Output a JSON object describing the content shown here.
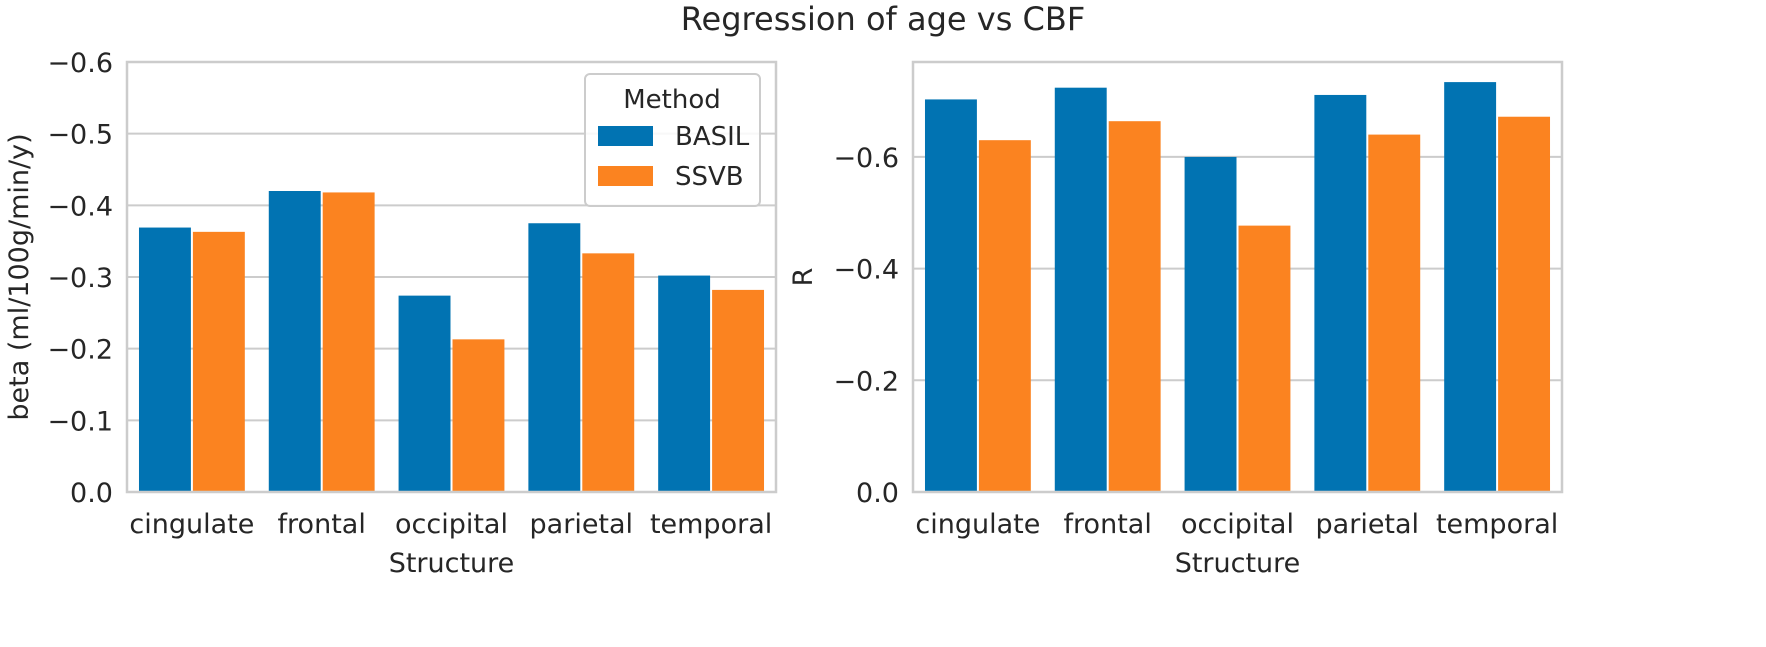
{
  "figure_title": "Regression of age vs CBF",
  "colors": {
    "basil": "#0173b2",
    "ssvb": "#fb8320",
    "grid": "#cccccc",
    "frame": "#cccccc",
    "text": "#262626"
  },
  "chart_data": [
    {
      "type": "bar",
      "categories": [
        "cingulate",
        "frontal",
        "occipital",
        "parietal",
        "temporal"
      ],
      "series": [
        {
          "name": "BASIL",
          "values": [
            -0.369,
            -0.42,
            -0.274,
            -0.375,
            -0.302
          ]
        },
        {
          "name": "SSVB",
          "values": [
            -0.363,
            -0.418,
            -0.213,
            -0.333,
            -0.282
          ]
        }
      ],
      "xlabel": "Structure",
      "ylabel": "beta (ml/100g/min/y)",
      "ylim": [
        0.0,
        -0.6
      ],
      "yticks": [
        "0.0",
        "−0.1",
        "−0.2",
        "−0.3",
        "−0.4",
        "−0.5",
        "−0.6"
      ],
      "ytick_values": [
        0.0,
        -0.1,
        -0.2,
        -0.3,
        -0.4,
        -0.5,
        -0.6
      ],
      "legend": {
        "title": "Method",
        "entries": [
          "BASIL",
          "SSVB"
        ],
        "placement": "top-right"
      },
      "grid": true
    },
    {
      "type": "bar",
      "categories": [
        "cingulate",
        "frontal",
        "occipital",
        "parietal",
        "temporal"
      ],
      "series": [
        {
          "name": "BASIL",
          "values": [
            -0.703,
            -0.724,
            -0.6,
            -0.711,
            -0.734
          ]
        },
        {
          "name": "SSVB",
          "values": [
            -0.63,
            -0.664,
            -0.477,
            -0.64,
            -0.672
          ]
        }
      ],
      "xlabel": "Structure",
      "ylabel": "R",
      "ylim": [
        0.0,
        -0.77
      ],
      "yticks": [
        "0.0",
        "−0.2",
        "−0.4",
        "−0.6"
      ],
      "ytick_values": [
        0.0,
        -0.2,
        -0.4,
        -0.6
      ],
      "grid": true
    }
  ]
}
